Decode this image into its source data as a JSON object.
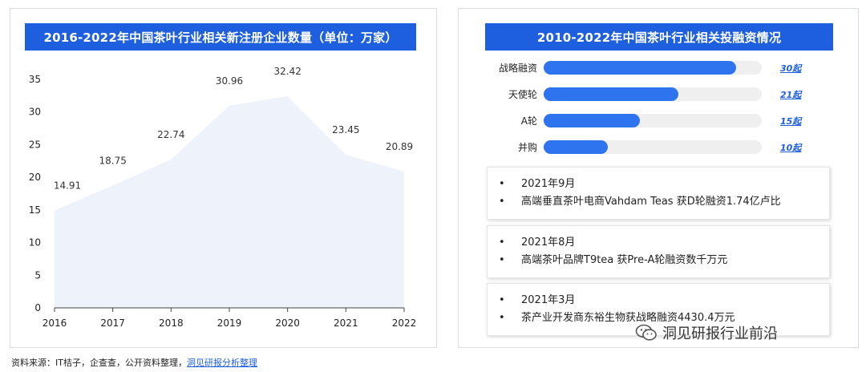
{
  "left": {
    "title": "2016-2022年中国茶叶行业相关新注册企业数量（单位：万家）"
  },
  "right": {
    "title": "2010-2022年中国茶叶行业相关投融资情况",
    "events": [
      {
        "date": "2021年9月",
        "text": "高端垂直茶叶电商Vahdam Teas 获D轮融资1.74亿卢比"
      },
      {
        "date": "2021年8月",
        "text": "高端茶叶品牌T9tea 获Pre-A轮融资数千万元"
      },
      {
        "date": "2021年3月",
        "text": "茶产业开发商东裕生物获战略融资4430.4万元"
      }
    ]
  },
  "footer": {
    "source_prefix": "资料来源：IT桔子，企查查，公开资料整理，",
    "source_link": "洞见研报分析整理",
    "wechat": "洞见研报行业前沿",
    "bullet": "•"
  },
  "chart_data": [
    {
      "type": "area",
      "title": "2016-2022年中国茶叶行业相关新注册企业数量（单位：万家）",
      "x": [
        "2016",
        "2017",
        "2018",
        "2019",
        "2020",
        "2021",
        "2022"
      ],
      "values": [
        14.91,
        18.75,
        22.74,
        30.96,
        32.42,
        23.45,
        20.89
      ],
      "ylim": [
        0,
        35
      ],
      "yticks": [
        0,
        5,
        10,
        15,
        20,
        25,
        30,
        35
      ],
      "grid": false,
      "fill_color": "#eef2fb"
    },
    {
      "type": "bar",
      "orientation": "horizontal",
      "title": "2010-2022年中国茶叶行业相关投融资情况",
      "categories": [
        "战略融资",
        "天使轮",
        "A轮",
        "并购"
      ],
      "values": [
        30,
        21,
        15,
        10
      ],
      "value_labels": [
        "30起",
        "21起",
        "15起",
        "10起"
      ],
      "xlim": [
        0,
        34
      ],
      "bar_color": "#2f74ef",
      "track_color": "#efefef"
    }
  ]
}
